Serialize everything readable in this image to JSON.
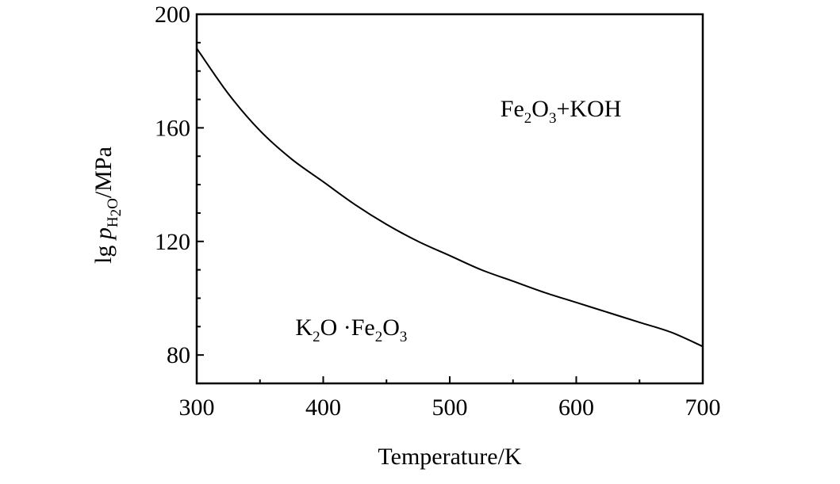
{
  "chart_data": {
    "type": "line",
    "xlabel": "Temperature/K",
    "ylabel": {
      "prefix": "lg ",
      "var": "p",
      "sub": "H",
      "sub2": "2",
      "sub3": "O",
      "suffix": "/MPa"
    },
    "xlim": [
      300,
      700
    ],
    "ylim": [
      70,
      200
    ],
    "xticks": [
      300,
      400,
      500,
      600,
      700
    ],
    "yticks": [
      80,
      120,
      160,
      200
    ],
    "grid": false,
    "series": [
      {
        "x": [
          300,
          325,
          350,
          375,
          400,
          425,
          450,
          475,
          500,
          525,
          550,
          575,
          600,
          625,
          650,
          675,
          700
        ],
        "y": [
          188,
          172,
          159,
          149,
          141,
          133,
          126,
          120,
          115,
          110,
          106,
          102,
          98.5,
          95,
          91.5,
          88,
          83
        ]
      }
    ],
    "annotations": [
      {
        "id": "fe2o3-koh",
        "x": 540,
        "y": 164,
        "parts": [
          {
            "t": "Fe",
            "s": false
          },
          {
            "t": "2",
            "s": true
          },
          {
            "t": "O",
            "s": false
          },
          {
            "t": "3",
            "s": true
          },
          {
            "t": "+KOH",
            "s": false
          }
        ]
      },
      {
        "id": "k2o-fe2o3",
        "x": 378,
        "y": 87,
        "parts": [
          {
            "t": "K",
            "s": false
          },
          {
            "t": "2",
            "s": true
          },
          {
            "t": "O ·Fe",
            "s": false
          },
          {
            "t": "2",
            "s": true
          },
          {
            "t": "O",
            "s": false
          },
          {
            "t": "3",
            "s": true
          }
        ]
      }
    ]
  }
}
